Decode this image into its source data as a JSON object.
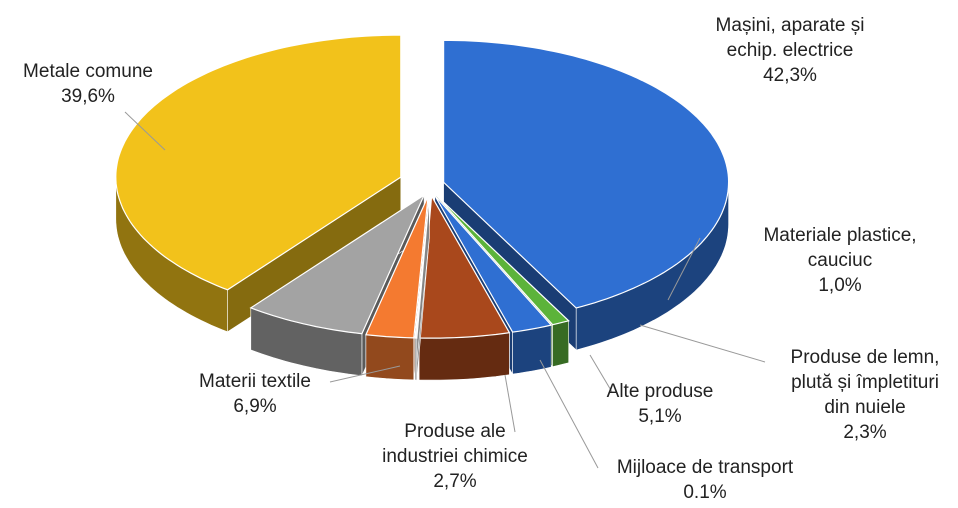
{
  "chart_data": {
    "type": "pie3d",
    "categories": [
      [
        "Mașini, aparate și",
        "echip. electrice"
      ],
      [
        "Materiale plastice,",
        "cauciuc"
      ],
      [
        "Produse de lemn,",
        "plută și împletituri",
        "din nuiele"
      ],
      [
        "Alte produse"
      ],
      [
        "Mijloace de transport"
      ],
      [
        "Produse ale",
        "industriei chimice"
      ],
      [
        "Materii textile"
      ],
      [
        "Metale comune"
      ]
    ],
    "values": [
      42.3,
      1.0,
      2.3,
      5.1,
      0.1,
      2.7,
      6.9,
      39.6
    ],
    "value_labels": [
      "42,3%",
      "1,0%",
      "2,3%",
      "5,1%",
      "0.1%",
      "2,7%",
      "6,9%",
      "39,6%"
    ],
    "colors": [
      "#2f6fd2",
      "#5cb33a",
      "#2f6fd2",
      "#a9481c",
      "#f2f2f2",
      "#f47a30",
      "#a3a3a3",
      "#f2c21b"
    ]
  }
}
